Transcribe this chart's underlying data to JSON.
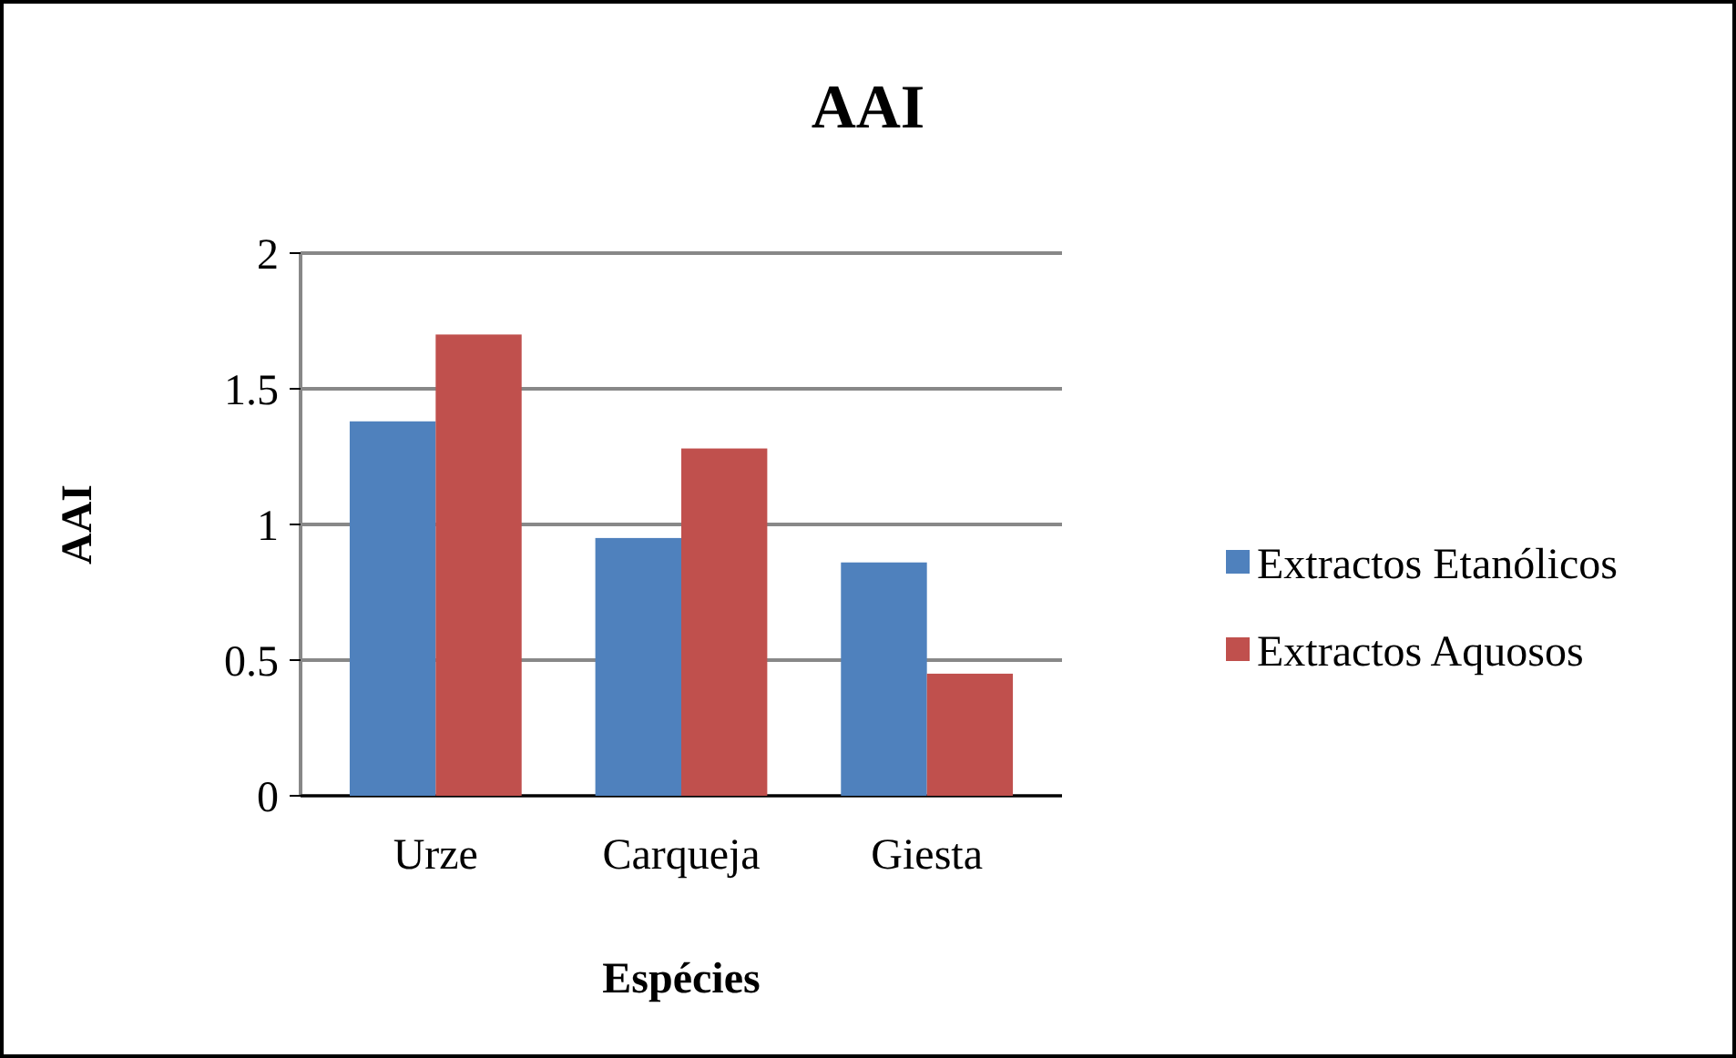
{
  "chart_data": {
    "type": "bar",
    "title": "AAI",
    "xlabel": "Espécies",
    "ylabel": "AAI",
    "categories": [
      "Urze",
      "Carqueja",
      "Giesta"
    ],
    "series": [
      {
        "name": "Extractos Etanólicos",
        "color": "#4f81bd",
        "values": [
          1.38,
          0.95,
          0.86
        ]
      },
      {
        "name": "Extractos Aquosos",
        "color": "#c0504d",
        "values": [
          1.7,
          1.28,
          0.45
        ]
      }
    ],
    "ylim": [
      0,
      2
    ],
    "yticks": [
      0,
      0.5,
      1,
      1.5,
      2
    ],
    "grid": "y",
    "legend": "right"
  }
}
